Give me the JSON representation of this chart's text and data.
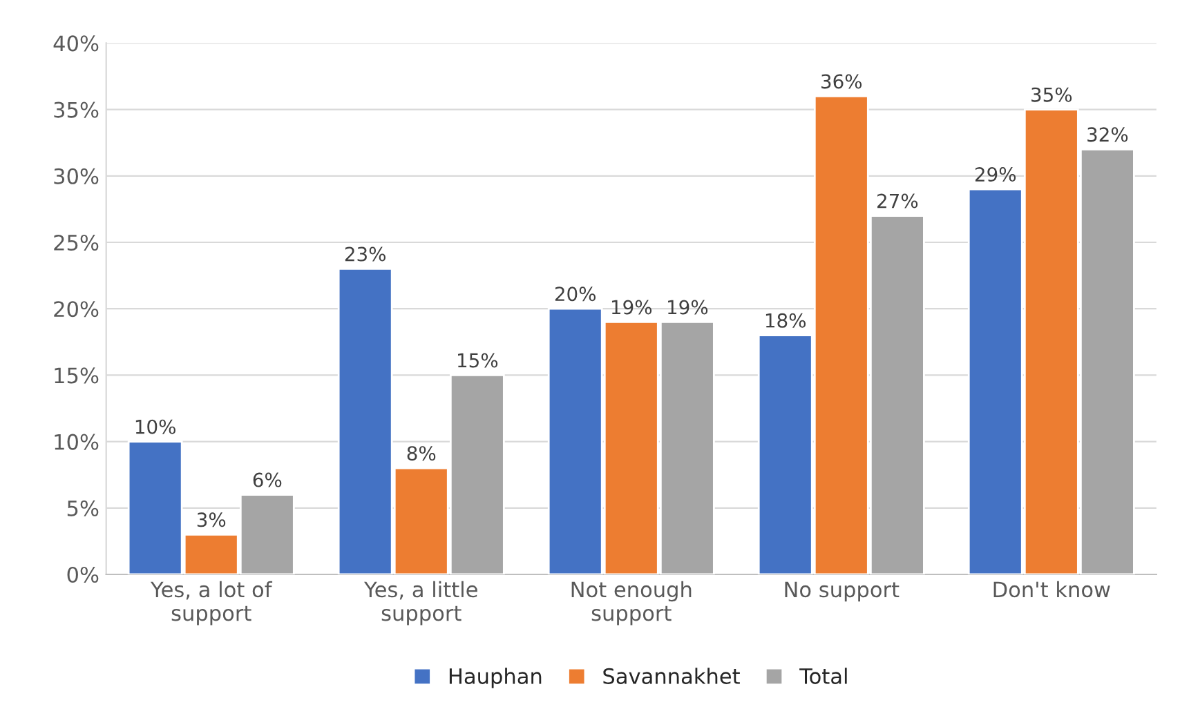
{
  "chart_data": {
    "type": "bar",
    "categories": [
      "Yes, a lot of\nsupport",
      "Yes, a little\nsupport",
      "Not enough\nsupport",
      "No support",
      "Don't know"
    ],
    "series": [
      {
        "name": "Hauphan",
        "color": "#4472c4",
        "values": [
          10,
          23,
          20,
          18,
          29
        ]
      },
      {
        "name": "Savannakhet",
        "color": "#ed7d31",
        "values": [
          3,
          8,
          19,
          36,
          35
        ]
      },
      {
        "name": "Total",
        "color": "#a5a5a5",
        "values": [
          6,
          15,
          19,
          27,
          32
        ]
      }
    ],
    "ylim": [
      0,
      40
    ],
    "yticks": [
      {
        "value": 0,
        "label": "0%"
      },
      {
        "value": 5,
        "label": "5%"
      },
      {
        "value": 10,
        "label": "10%"
      },
      {
        "value": 15,
        "label": "15%"
      },
      {
        "value": 20,
        "label": "20%"
      },
      {
        "value": 25,
        "label": "25%"
      },
      {
        "value": 30,
        "label": "30%"
      },
      {
        "value": 35,
        "label": "35%"
      },
      {
        "value": 40,
        "label": "40%"
      }
    ],
    "value_labels": [
      [
        "10%",
        "23%",
        "20%",
        "18%",
        "29%"
      ],
      [
        "3%",
        "8%",
        "19%",
        "36%",
        "35%"
      ],
      [
        "6%",
        "15%",
        "19%",
        "27%",
        "32%"
      ]
    ],
    "grid": "y",
    "legend": "bottom"
  }
}
